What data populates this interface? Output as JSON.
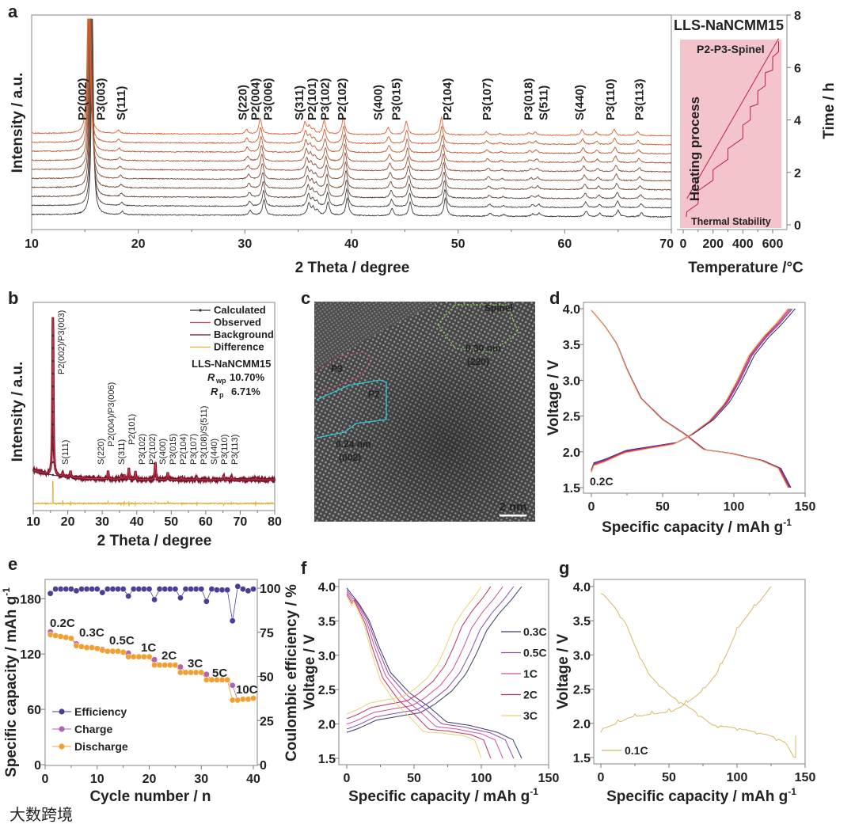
{
  "panel_labels": [
    "a",
    "b",
    "c",
    "d",
    "e",
    "f",
    "g"
  ],
  "watermark": "大数跨境",
  "colors": {
    "P2": "#d0143c",
    "P3": "#7a3aa0",
    "S": "#e0b428",
    "efficiency": "#4a3f96",
    "charge": "#b064b4",
    "discharge": "#f0a030"
  },
  "chart_data": [
    {
      "id": "a-xrd",
      "type": "line",
      "title": "LLS-NaNCMM15",
      "xlabel": "2 Theta / degree",
      "ylabel": "Intensity / a.u.",
      "xlim": [
        10,
        70
      ],
      "xticks": [
        10,
        20,
        30,
        40,
        50,
        60,
        70
      ],
      "n_patterns": 10,
      "peak_shift_per_pattern_deg": -0.04,
      "peaks": [
        [
          15.7,
          250
        ],
        [
          18.5,
          4
        ],
        [
          30.5,
          6
        ],
        [
          31.8,
          20
        ],
        [
          36.0,
          15
        ],
        [
          36.4,
          9
        ],
        [
          36.8,
          6
        ],
        [
          37.8,
          17
        ],
        [
          39.6,
          22
        ],
        [
          43.8,
          9
        ],
        [
          45.5,
          17
        ],
        [
          48.8,
          22
        ],
        [
          53.0,
          4
        ],
        [
          54.3,
          2
        ],
        [
          57.0,
          3
        ],
        [
          57.6,
          4
        ],
        [
          62.0,
          7
        ],
        [
          63.3,
          4
        ],
        [
          65.0,
          8
        ],
        [
          67.2,
          5
        ]
      ],
      "peak_labels": [
        {
          "text": "P2(002)",
          "phase": "P2",
          "pos": 14.75
        },
        {
          "text": "P3(003)",
          "phase": "P3",
          "pos": 16.5
        },
        {
          "text": "S(111)",
          "phase": "S",
          "pos": 18.4
        },
        {
          "text": "S(220)",
          "phase": "S",
          "pos": 29.8
        },
        {
          "text": "P2(004)",
          "phase": "P2",
          "pos": 30.9
        },
        {
          "text": "P3(006)",
          "phase": "P3",
          "pos": 32.0
        },
        {
          "text": "S(311)",
          "phase": "S",
          "pos": 35.1
        },
        {
          "text": "P2(101)",
          "phase": "P2",
          "pos": 36.2
        },
        {
          "text": "P3(102)",
          "phase": "P3",
          "pos": 37.5
        },
        {
          "text": "P2(102)",
          "phase": "P2",
          "pos": 39.1
        },
        {
          "text": "S(400)",
          "phase": "S",
          "pos": 42.5
        },
        {
          "text": "P3(015)",
          "phase": "P3",
          "pos": 44.2
        },
        {
          "text": "P2(104)",
          "phase": "P2",
          "pos": 49.0
        },
        {
          "text": "P3(107)",
          "phase": "P3",
          "pos": 52.7
        },
        {
          "text": "P3(018)",
          "phase": "P3",
          "pos": 56.6
        },
        {
          "text": "S(511)",
          "phase": "S",
          "pos": 58.0
        },
        {
          "text": "S(440)",
          "phase": "S",
          "pos": 61.4
        },
        {
          "text": "P3(110)",
          "phase": "P3",
          "pos": 64.3
        },
        {
          "text": "P3(113)",
          "phase": "P3",
          "pos": 67.0
        }
      ]
    },
    {
      "id": "a-heating-profile",
      "type": "line",
      "xlabel": "Temperature /°C",
      "ylabel": "Time / h",
      "xlim": [
        0,
        700
      ],
      "ylim": [
        0,
        8
      ],
      "xticks": [
        0,
        200,
        400,
        600
      ],
      "yticks": [
        0,
        2,
        4,
        6,
        8
      ],
      "region_label": "P2-P3-Spinel",
      "heating_label": "Heating process",
      "stability_label": "Thermal Stability",
      "heating_line": [
        [
          25,
          1.0
        ],
        [
          640,
          7.1
        ]
      ],
      "thermal_steps": [
        [
          20,
          0.3
        ],
        [
          25,
          0.5
        ],
        [
          100,
          0.8
        ],
        [
          100,
          1.3
        ],
        [
          200,
          1.7
        ],
        [
          200,
          2.1
        ],
        [
          300,
          2.5
        ],
        [
          300,
          2.9
        ],
        [
          400,
          3.3
        ],
        [
          400,
          3.8
        ],
        [
          450,
          4.0
        ],
        [
          450,
          4.5
        ],
        [
          500,
          4.6
        ],
        [
          500,
          5.1
        ],
        [
          550,
          5.3
        ],
        [
          550,
          5.8
        ],
        [
          600,
          5.9
        ],
        [
          600,
          6.4
        ],
        [
          640,
          6.6
        ],
        [
          640,
          7.0
        ]
      ]
    },
    {
      "id": "b-refinement",
      "type": "line",
      "xlabel": "2 Theta / degree",
      "ylabel": "Intensity / a.u.",
      "xlim": [
        10,
        80
      ],
      "xticks": [
        10,
        20,
        30,
        40,
        50,
        60,
        70,
        80
      ],
      "legend": [
        "Calculated",
        "Observed",
        "Background",
        "Difference"
      ],
      "sample": "LLS-NaNCMM15",
      "rwp": {
        "symbol": "R",
        "sub": "wp",
        "value": "10.70%"
      },
      "rp": {
        "symbol": "R",
        "sub": "p",
        "value": "6.71%"
      },
      "peaks": [
        [
          15.7,
          200
        ],
        [
          18.6,
          4
        ],
        [
          20.8,
          8
        ],
        [
          31.7,
          10
        ],
        [
          35.5,
          4
        ],
        [
          36.4,
          6
        ],
        [
          37.7,
          14
        ],
        [
          39.6,
          10
        ],
        [
          45.4,
          22
        ],
        [
          49.0,
          9
        ],
        [
          53.0,
          3
        ],
        [
          57.4,
          3
        ],
        [
          65.2,
          5
        ],
        [
          67.5,
          3
        ],
        [
          74.5,
          2
        ]
      ],
      "peak_labels": [
        {
          "text": "P2(002)/P3(003)",
          "pos": 18.0
        },
        {
          "text": "S(111)",
          "pos": 19.2
        },
        {
          "text": "S(220)",
          "pos": 29.5
        },
        {
          "text": "P2(004)/P3(006)",
          "pos": 31.8
        },
        {
          "text": "S(311)",
          "pos": 34.6
        },
        {
          "text": "P2(101)",
          "pos": 35.9
        },
        {
          "text": "P3(102)",
          "pos": 37.8
        },
        {
          "text": "P2(102)",
          "pos": 39.8
        },
        {
          "text": "S(400)",
          "pos": 43.3
        },
        {
          "text": "P3(015)",
          "pos": 45.6
        },
        {
          "text": "P2(104)",
          "pos": 49.2
        },
        {
          "text": "P3(107)",
          "pos": 53.1
        },
        {
          "text": "P3(108)/S(511)",
          "pos": 57.2
        },
        {
          "text": "S(440)",
          "pos": 61.8
        },
        {
          "text": "P3(110)",
          "pos": 65.3
        },
        {
          "text": "P3(113)",
          "pos": 67.6
        }
      ]
    },
    {
      "id": "d-charge-discharge",
      "type": "line",
      "xlabel": "Specific capacity / mAh g",
      "xlabel_sup": "-1",
      "ylabel": "Voltage / V",
      "xlim": [
        0,
        150
      ],
      "ylim": [
        1.5,
        4.0
      ],
      "xticks": [
        0,
        50,
        100,
        150
      ],
      "yticks": [
        "1.5",
        "2.0",
        "2.5",
        "3.0",
        "3.5",
        "4.0"
      ],
      "rate_label": "0.2C",
      "charge_shape": [
        [
          0,
          1.75
        ],
        [
          0.005,
          1.84
        ],
        [
          0.07,
          1.9
        ],
        [
          0.17,
          2.02
        ],
        [
          0.35,
          2.1
        ],
        [
          0.42,
          2.13
        ],
        [
          0.5,
          2.25
        ],
        [
          0.6,
          2.45
        ],
        [
          0.68,
          2.7
        ],
        [
          0.74,
          3.0
        ],
        [
          0.8,
          3.35
        ],
        [
          0.87,
          3.6
        ],
        [
          0.94,
          3.8
        ],
        [
          1,
          4.0
        ]
      ],
      "discharge_shape": [
        [
          0,
          3.98
        ],
        [
          0.07,
          3.75
        ],
        [
          0.13,
          3.5
        ],
        [
          0.18,
          3.15
        ],
        [
          0.25,
          2.75
        ],
        [
          0.36,
          2.45
        ],
        [
          0.47,
          2.25
        ],
        [
          0.57,
          2.03
        ],
        [
          0.7,
          1.98
        ],
        [
          0.86,
          1.88
        ],
        [
          0.95,
          1.77
        ],
        [
          1,
          1.5
        ]
      ],
      "cycles": [
        {
          "charge_capacity": 143,
          "discharge_capacity": 140,
          "color": "#2a2a5a"
        },
        {
          "charge_capacity": 141,
          "discharge_capacity": 139.5,
          "color": "#6a3a9a"
        },
        {
          "charge_capacity": 140,
          "discharge_capacity": 139,
          "color": "#c0309a"
        },
        {
          "charge_capacity": 139,
          "discharge_capacity": 138.5,
          "color": "#d02050"
        },
        {
          "charge_capacity": 138,
          "discharge_capacity": 138,
          "color": "#f0a050"
        }
      ]
    },
    {
      "id": "e-rate-capability",
      "type": "scatter",
      "xlabel": "Cycle number / n",
      "ylabel": "Specific capacity / mAh g",
      "ylabel_sup": "-1",
      "y2label": "Coulombic efficiency / %",
      "xlim": [
        0,
        40
      ],
      "ylim": [
        0,
        200
      ],
      "y2lim": [
        0,
        100
      ],
      "xticks": [
        0,
        10,
        20,
        30,
        40
      ],
      "yticks": [
        0,
        60,
        120,
        180
      ],
      "y2ticks": [
        0,
        25,
        50,
        75,
        100
      ],
      "legend": [
        "Efficiency",
        "Charge",
        "Discharge"
      ],
      "rate_labels": [
        "0.2C",
        "0.3C",
        "0.5C",
        "1C",
        "2C",
        "3C",
        "5C",
        "10C"
      ],
      "cycle": [
        1,
        2,
        3,
        4,
        5,
        6,
        7,
        8,
        9,
        10,
        11,
        12,
        13,
        14,
        15,
        16,
        17,
        18,
        19,
        20,
        21,
        22,
        23,
        24,
        25,
        26,
        27,
        28,
        29,
        30,
        31,
        32,
        33,
        34,
        35,
        36,
        37,
        38,
        39,
        40
      ],
      "discharge": [
        141,
        140,
        139,
        138,
        137,
        129,
        128,
        127,
        127,
        126,
        124,
        123,
        123,
        123,
        122,
        117,
        117,
        117,
        117,
        117,
        108,
        108,
        108,
        108,
        108,
        100,
        100,
        100,
        100,
        100,
        92,
        92,
        92,
        92,
        92,
        70,
        70,
        71,
        71,
        72
      ],
      "charge": [
        144,
        140,
        139,
        138,
        137,
        131,
        128,
        127,
        127,
        126,
        125,
        123,
        123,
        123,
        122,
        121,
        117,
        117,
        117,
        117,
        114,
        108,
        108,
        108,
        108,
        106,
        100,
        100,
        100,
        100,
        98,
        92,
        92,
        92,
        92,
        86,
        70,
        71,
        71,
        72
      ],
      "efficiency": [
        97,
        99.5,
        99.5,
        99.5,
        99.5,
        98.5,
        99.5,
        99.5,
        99.5,
        99.5,
        97.5,
        99.5,
        99.5,
        99.5,
        99.5,
        95.5,
        99.5,
        99.5,
        99.5,
        99.5,
        93.5,
        99.5,
        99.5,
        99.5,
        99.5,
        94.5,
        99.5,
        99.5,
        99.5,
        99.5,
        92.5,
        99.5,
        99,
        99,
        99,
        81.5,
        101,
        99.5,
        98.5,
        99.5
      ]
    },
    {
      "id": "f-rate-curves",
      "type": "line",
      "xlabel": "Specific capacity / mAh g",
      "xlabel_sup": "-1",
      "ylabel": "Voltage / V",
      "xlim": [
        0,
        150
      ],
      "ylim": [
        1.5,
        4.0
      ],
      "xticks": [
        0,
        50,
        100,
        150
      ],
      "yticks": [
        "1.5",
        "2.0",
        "2.5",
        "3.0",
        "3.5",
        "4.0"
      ],
      "series": [
        {
          "name": "0.3C",
          "capacity": 130,
          "charge_start_V": 1.88,
          "discharge_drop_V": 0.0,
          "color": "#3a3a6a"
        },
        {
          "name": "0.5C",
          "capacity": 124,
          "charge_start_V": 1.93,
          "discharge_drop_V": 0.03,
          "color": "#8a4ab0"
        },
        {
          "name": "1C",
          "capacity": 116,
          "charge_start_V": 2.0,
          "discharge_drop_V": 0.07,
          "color": "#d050a0"
        },
        {
          "name": "2C",
          "capacity": 107,
          "charge_start_V": 2.08,
          "discharge_drop_V": 0.11,
          "color": "#c03060"
        },
        {
          "name": "3C",
          "capacity": 100,
          "charge_start_V": 2.15,
          "discharge_drop_V": 0.15,
          "color": "#ecd070"
        }
      ]
    },
    {
      "id": "g-0.1C",
      "type": "line",
      "xlabel": "Specific capacity / mAh g",
      "xlabel_sup": "-1",
      "ylabel": "Voltage / V",
      "xlim": [
        0,
        150
      ],
      "ylim": [
        1.5,
        4.0
      ],
      "xticks": [
        0,
        50,
        100,
        150
      ],
      "yticks": [
        "1.5",
        "2.0",
        "2.5",
        "3.0",
        "3.5",
        "4.0"
      ],
      "legend": [
        "0.1C"
      ],
      "charge_capacity": 125,
      "discharge_capacity": 143,
      "color": "#d8b868"
    }
  ],
  "hrtem": {
    "spinel_label": "Spinel",
    "spinel_spacing": "0.30 nm",
    "spinel_plane": "(220)",
    "p2_label": "P2",
    "p2_spacing": "0.24 nm",
    "p2_plane": "(002)",
    "p3_label": "P3",
    "scale_bar": "2 nm"
  }
}
